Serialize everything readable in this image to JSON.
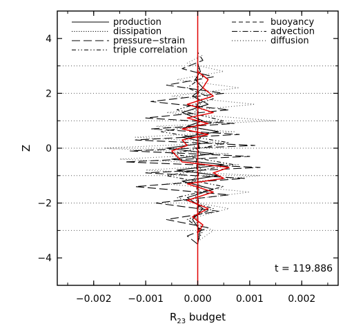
{
  "chart_data": {
    "type": "line",
    "title": "",
    "xlabel": "R23 budget",
    "xlabel_main": "R",
    "xlabel_sub": "23",
    "xlabel_rest": " budget",
    "ylabel": "Z",
    "xlim": [
      -0.0027,
      0.0027
    ],
    "ylim": [
      -5.0,
      5.0
    ],
    "x_ticks": [
      -0.002,
      -0.001,
      0.0,
      0.001,
      0.002
    ],
    "x_tick_labels": [
      "−0.002",
      "−0.001",
      "0.000",
      "0.001",
      "0.002"
    ],
    "y_ticks": [
      -4,
      -2,
      0,
      2,
      4
    ],
    "y_tick_labels": [
      "−4",
      "−2",
      "0",
      "2",
      "4"
    ],
    "grid": false,
    "reference_lines_z": [
      -3,
      -2,
      -1,
      0,
      1,
      2,
      3
    ],
    "annotation": "t = 119.886",
    "legend_position": "top",
    "legend_left": [
      {
        "label": "production",
        "style": "solid"
      },
      {
        "label": "dissipation",
        "style": "dotted"
      },
      {
        "label": "pressure−strain",
        "style": "long-dash"
      },
      {
        "label": "triple correlation",
        "style": "dash-dot-dot"
      }
    ],
    "legend_right": [
      {
        "label": "buoyancy",
        "style": "dashed"
      },
      {
        "label": "advection",
        "style": "dash-dot"
      },
      {
        "label": "diffusion",
        "style": "sparse-dotted"
      }
    ],
    "series": [
      {
        "name": "production",
        "style": "solid",
        "color": "#000000",
        "z": [
          -3.5,
          -3.0,
          -2.6,
          -2.2,
          -1.8,
          -1.5,
          -1.2,
          -1.0,
          -0.8,
          -0.6,
          -0.4,
          -0.2,
          0.0,
          0.2,
          0.4,
          0.6,
          0.8,
          1.0,
          1.3,
          1.6,
          1.9,
          2.2,
          2.5,
          2.8,
          3.1,
          3.4
        ],
        "x": [
          0.0,
          5e-05,
          -0.0001,
          0.0001,
          -0.0002,
          0.0003,
          -0.0003,
          0.0004,
          -0.0004,
          0.0005,
          -0.0005,
          0.0003,
          -0.0006,
          0.0002,
          -0.0003,
          0.0004,
          -0.0002,
          0.0001,
          -0.0003,
          0.0002,
          -0.0001,
          0.0001,
          -5e-05,
          5e-05,
          0.0,
          0.0
        ]
      },
      {
        "name": "dissipation",
        "style": "dotted",
        "color": "#000000",
        "z": [
          -3.4,
          -3.0,
          -2.6,
          -2.2,
          -1.8,
          -1.4,
          -1.1,
          -0.8,
          -0.5,
          -0.2,
          0.1,
          0.4,
          0.7,
          1.0,
          1.3,
          1.6,
          1.9,
          2.2,
          2.5,
          2.8,
          3.1,
          3.4
        ],
        "x": [
          0.0,
          2e-05,
          -3e-05,
          4e-05,
          -5e-05,
          6e-05,
          -7e-05,
          8e-05,
          -6e-05,
          5e-05,
          -8e-05,
          6e-05,
          -5e-05,
          4e-05,
          -6e-05,
          5e-05,
          -3e-05,
          2e-05,
          -2e-05,
          1e-05,
          0.0,
          0.0
        ]
      },
      {
        "name": "pressure−strain",
        "style": "long-dash",
        "color": "#000000",
        "z": [
          -3.5,
          -3.2,
          -2.9,
          -2.6,
          -2.3,
          -2.0,
          -1.7,
          -1.4,
          -1.1,
          -0.9,
          -0.7,
          -0.5,
          -0.3,
          -0.1,
          0.1,
          0.3,
          0.5,
          0.7,
          0.9,
          1.1,
          1.4,
          1.7,
          2.0,
          2.3,
          2.6,
          2.9,
          3.2,
          3.5
        ],
        "x": [
          0.0,
          -0.0002,
          0.0002,
          -0.0006,
          0.0004,
          -0.0008,
          0.0006,
          -0.0012,
          0.0009,
          -0.001,
          0.0012,
          -0.0014,
          0.001,
          -0.0013,
          0.0011,
          -0.0012,
          0.0008,
          -0.0009,
          0.0007,
          -0.001,
          0.0006,
          -0.0009,
          0.0005,
          -0.0006,
          0.0003,
          -0.0003,
          0.0001,
          0.0
        ]
      },
      {
        "name": "triple correlation",
        "style": "dash-dot-dot",
        "color": "#000000",
        "z": [
          -3.4,
          -3.0,
          -2.6,
          -2.2,
          -1.8,
          -1.4,
          -1.0,
          -0.6,
          -0.2,
          0.2,
          0.6,
          1.0,
          1.4,
          1.8,
          2.2,
          2.6,
          3.0,
          3.4
        ],
        "x": [
          0.0,
          0.0001,
          -0.0002,
          0.0003,
          -0.0004,
          0.0005,
          -0.0006,
          0.0007,
          -0.0005,
          0.0006,
          -0.0007,
          0.0005,
          -0.0004,
          0.0003,
          -0.0002,
          0.0001,
          0.0,
          0.0
        ]
      },
      {
        "name": "buoyancy",
        "style": "dashed",
        "color": "#000000",
        "z": [
          -3.5,
          -3.0,
          -2.5,
          -2.0,
          -1.5,
          -1.0,
          -0.5,
          0.0,
          0.5,
          1.0,
          1.5,
          2.0,
          2.5,
          3.0,
          3.5
        ],
        "x": [
          0.0,
          1e-05,
          -1e-05,
          2e-05,
          -2e-05,
          2e-05,
          -3e-05,
          3e-05,
          -2e-05,
          2e-05,
          -2e-05,
          1e-05,
          -1e-05,
          0.0,
          0.0
        ]
      },
      {
        "name": "advection",
        "style": "dash-dot",
        "color": "#000000",
        "z": [
          -3.5,
          -2.8,
          -2.1,
          -1.4,
          -0.7,
          0.0,
          0.7,
          1.4,
          2.1,
          2.8,
          3.5
        ],
        "x": [
          0.0,
          1e-05,
          -1e-05,
          1e-05,
          -2e-05,
          2e-05,
          -1e-05,
          1e-05,
          -1e-05,
          0.0,
          0.0
        ]
      },
      {
        "name": "diffusion",
        "style": "sparse-dotted",
        "color": "#555555",
        "z": [
          -3.4,
          -3.0,
          -2.6,
          -2.2,
          -1.9,
          -1.6,
          -1.3,
          -1.0,
          -0.8,
          -0.6,
          -0.4,
          -0.2,
          0.0,
          0.2,
          0.4,
          0.6,
          0.8,
          1.0,
          1.3,
          1.6,
          1.9,
          2.2,
          2.5,
          2.8,
          3.1,
          3.4
        ],
        "x": [
          0.0,
          0.0003,
          -0.0002,
          0.0006,
          -0.0003,
          0.001,
          -0.0006,
          0.0012,
          -0.001,
          0.0008,
          -0.0015,
          0.0006,
          -0.0018,
          0.0005,
          -0.0012,
          0.0007,
          -0.0008,
          0.0015,
          -0.0006,
          0.0011,
          -0.0005,
          0.0008,
          -0.0004,
          0.0005,
          -0.0002,
          0.0001
        ]
      },
      {
        "name": "",
        "style": "solid",
        "color": "#e00000",
        "z": [
          -3.1,
          -2.8,
          -2.5,
          -2.2,
          -1.9,
          -1.6,
          -1.3,
          -1.1,
          -0.9,
          -0.7,
          -0.5,
          -0.3,
          -0.1,
          0.1,
          0.3,
          0.5,
          0.7,
          0.9,
          1.1,
          1.3,
          1.6,
          1.9,
          2.2,
          2.5,
          2.8
        ],
        "x": [
          0.0,
          0.0001,
          -0.0001,
          0.0002,
          -0.0002,
          0.0003,
          -0.0002,
          0.0005,
          0.0003,
          0.0006,
          -0.0003,
          -0.0004,
          -0.0005,
          -0.0002,
          -0.0003,
          0.0002,
          -0.0003,
          0.0002,
          -0.0002,
          0.0003,
          -0.0002,
          0.0003,
          0.0001,
          0.0002,
          0.0
        ]
      },
      {
        "name": "",
        "style": "solid",
        "color": "#e00000",
        "z": [
          -5.0,
          5.0
        ],
        "x": [
          0.0,
          0.0
        ]
      }
    ]
  }
}
